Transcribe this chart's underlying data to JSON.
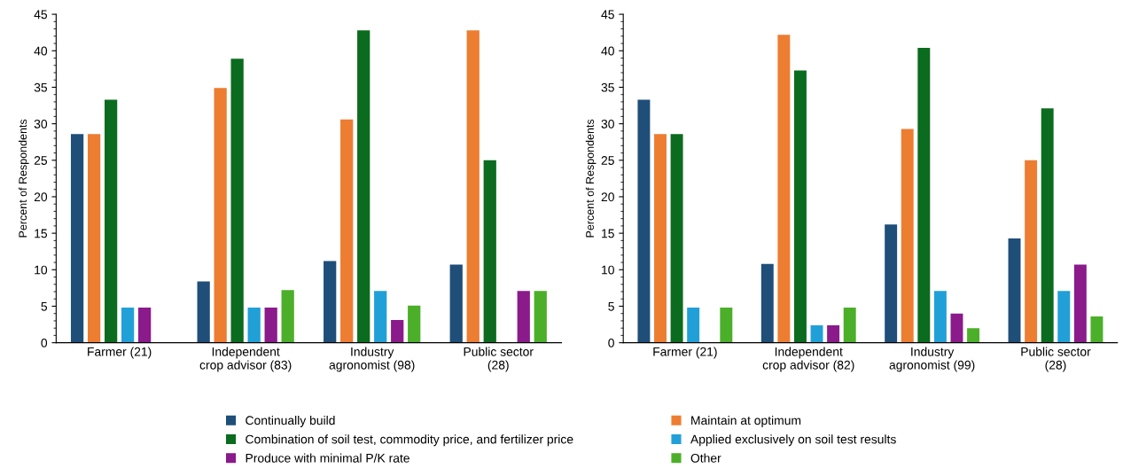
{
  "chart_data": [
    {
      "type": "bar",
      "ylabel": "Percent of Respondents",
      "categories": [
        "Farmer (21)",
        "Independent\ncrop advisor (83)",
        "Industry\nagronomist (98)",
        "Public sector\n(28)"
      ],
      "ylim": [
        0,
        45
      ],
      "yticks": [
        0,
        5,
        10,
        15,
        20,
        25,
        30,
        35,
        40,
        45
      ],
      "legend": "bottom",
      "series": [
        {
          "name": "Continually build",
          "color": "#1f4e79",
          "values": [
            28.6,
            8.4,
            11.2,
            10.7
          ]
        },
        {
          "name": "Maintain at optimum",
          "color": "#ed7d31",
          "values": [
            28.6,
            34.9,
            30.6,
            42.8
          ]
        },
        {
          "name": "Combination of soil test, commodity price, and fertilizer price",
          "color": "#0b6b1f",
          "values": [
            33.3,
            38.9,
            42.8,
            25.0
          ]
        },
        {
          "name": "Applied exclusively on soil test results",
          "color": "#21a0d8",
          "values": [
            4.8,
            4.8,
            7.1,
            null
          ]
        },
        {
          "name": "Produce with minimal P/K rate",
          "color": "#8b1a8b",
          "values": [
            4.8,
            4.8,
            3.1,
            7.1
          ]
        },
        {
          "name": "Other",
          "color": "#4caf29",
          "values": [
            null,
            7.2,
            5.1,
            7.1
          ]
        }
      ]
    },
    {
      "type": "bar",
      "ylabel": "Percent of Respondents",
      "categories": [
        "Farmer (21)",
        "Independent\ncrop advisor (82)",
        "Industry\nagronomist (99)",
        "Public sector\n(28)"
      ],
      "ylim": [
        0,
        45
      ],
      "yticks": [
        0,
        5,
        10,
        15,
        20,
        25,
        30,
        35,
        40,
        45
      ],
      "series": [
        {
          "color": "#1f4e79",
          "values": [
            33.3,
            10.8,
            16.2,
            14.3
          ]
        },
        {
          "color": "#ed7d31",
          "values": [
            28.6,
            42.2,
            29.3,
            25.0
          ]
        },
        {
          "color": "#0b6b1f",
          "values": [
            28.6,
            37.3,
            40.4,
            32.1
          ]
        },
        {
          "color": "#21a0d8",
          "values": [
            4.8,
            2.4,
            7.1,
            7.1
          ]
        },
        {
          "color": "#8b1a8b",
          "values": [
            null,
            2.4,
            4.0,
            10.7
          ]
        },
        {
          "color": "#4caf29",
          "values": [
            4.8,
            4.8,
            2.0,
            3.6
          ]
        }
      ]
    }
  ]
}
